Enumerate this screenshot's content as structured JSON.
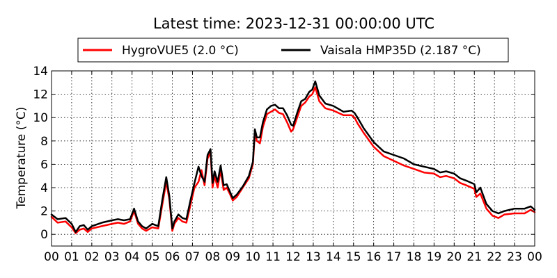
{
  "chart_data": {
    "type": "line",
    "title": "Latest time: 2023-12-31 00:00:00 UTC",
    "xlabel": "",
    "ylabel": "Temperature (°C)",
    "xlim": [
      0,
      24
    ],
    "ylim": [
      -1,
      14
    ],
    "xticks": [
      0,
      1,
      2,
      3,
      4,
      5,
      6,
      7,
      8,
      9,
      10,
      11,
      12,
      13,
      14,
      15,
      16,
      17,
      18,
      19,
      20,
      21,
      22,
      23,
      24
    ],
    "xtick_labels": [
      "00",
      "01",
      "02",
      "03",
      "04",
      "05",
      "06",
      "07",
      "08",
      "09",
      "10",
      "11",
      "12",
      "13",
      "14",
      "15",
      "16",
      "17",
      "18",
      "19",
      "20",
      "21",
      "22",
      "23",
      "00"
    ],
    "yticks": [
      0,
      2,
      4,
      6,
      8,
      10,
      12,
      14
    ],
    "ytick_labels": [
      "0",
      "2",
      "4",
      "6",
      "8",
      "10",
      "12",
      "14"
    ],
    "grid": true,
    "legend_position": "top",
    "series": [
      {
        "name": "HygroVUE5 (2.0 °C)",
        "color": "#ff0000",
        "x": [
          0,
          0.3,
          0.7,
          1.0,
          1.2,
          1.4,
          1.6,
          1.8,
          2.0,
          2.5,
          3.0,
          3.3,
          3.6,
          3.9,
          4.1,
          4.3,
          4.5,
          4.7,
          5.0,
          5.3,
          5.5,
          5.7,
          5.85,
          6.0,
          6.1,
          6.3,
          6.5,
          6.7,
          6.9,
          7.1,
          7.3,
          7.45,
          7.6,
          7.75,
          7.9,
          8.0,
          8.1,
          8.25,
          8.4,
          8.55,
          8.7,
          8.85,
          9.0,
          9.2,
          9.5,
          9.8,
          10.0,
          10.1,
          10.2,
          10.35,
          10.5,
          10.7,
          10.9,
          11.1,
          11.3,
          11.5,
          11.7,
          11.9,
          12.0,
          12.2,
          12.4,
          12.6,
          12.8,
          12.95,
          13.1,
          13.3,
          13.6,
          14.0,
          14.5,
          14.9,
          15.05,
          15.2,
          15.5,
          16.0,
          16.5,
          17.0,
          17.5,
          18.0,
          18.5,
          19.0,
          19.3,
          19.6,
          20.0,
          20.3,
          20.6,
          21.0,
          21.1,
          21.3,
          21.6,
          21.9,
          22.2,
          22.5,
          23.0,
          23.5,
          23.8,
          24.0
        ],
        "y": [
          1.5,
          1.0,
          1.1,
          0.6,
          0.1,
          0.4,
          0.5,
          0.2,
          0.5,
          0.7,
          0.9,
          1.0,
          0.9,
          1.1,
          2.0,
          0.9,
          0.5,
          0.3,
          0.6,
          0.5,
          2.5,
          4.5,
          3.0,
          0.3,
          0.9,
          1.4,
          1.1,
          1.0,
          2.5,
          4.0,
          4.5,
          5.5,
          4.2,
          6.5,
          7.0,
          4.0,
          5.0,
          4.0,
          5.5,
          3.8,
          4.0,
          3.5,
          2.9,
          3.2,
          4.0,
          4.8,
          6.0,
          8.7,
          8.0,
          7.8,
          9.2,
          10.3,
          10.5,
          10.7,
          10.4,
          10.3,
          9.6,
          8.8,
          9.0,
          10.0,
          11.0,
          11.3,
          11.8,
          12.0,
          12.6,
          11.4,
          10.8,
          10.6,
          10.2,
          10.2,
          10.0,
          9.5,
          8.7,
          7.5,
          6.7,
          6.3,
          5.9,
          5.6,
          5.3,
          5.2,
          4.9,
          5.0,
          4.8,
          4.4,
          4.2,
          3.9,
          3.2,
          3.5,
          2.2,
          1.6,
          1.4,
          1.7,
          1.8,
          1.8,
          2.1,
          1.9
        ]
      },
      {
        "name": "Vaisala HMP35D (2.187 °C)",
        "color": "#000000",
        "x": [
          0,
          0.3,
          0.7,
          1.0,
          1.2,
          1.4,
          1.6,
          1.8,
          2.0,
          2.5,
          3.0,
          3.3,
          3.6,
          3.9,
          4.1,
          4.3,
          4.5,
          4.7,
          5.0,
          5.3,
          5.5,
          5.7,
          5.85,
          6.0,
          6.1,
          6.3,
          6.5,
          6.7,
          6.9,
          7.1,
          7.3,
          7.45,
          7.6,
          7.75,
          7.9,
          8.0,
          8.1,
          8.25,
          8.4,
          8.55,
          8.7,
          8.85,
          9.0,
          9.2,
          9.5,
          9.8,
          10.0,
          10.1,
          10.2,
          10.35,
          10.5,
          10.7,
          10.9,
          11.1,
          11.3,
          11.5,
          11.7,
          11.9,
          12.0,
          12.2,
          12.4,
          12.6,
          12.8,
          12.95,
          13.1,
          13.3,
          13.6,
          14.0,
          14.5,
          14.9,
          15.05,
          15.2,
          15.5,
          16.0,
          16.5,
          17.0,
          17.5,
          18.0,
          18.5,
          19.0,
          19.3,
          19.6,
          20.0,
          20.3,
          20.6,
          21.0,
          21.1,
          21.3,
          21.6,
          21.9,
          22.2,
          22.5,
          23.0,
          23.5,
          23.8,
          24.0
        ],
        "y": [
          1.7,
          1.3,
          1.4,
          0.9,
          0.2,
          0.7,
          0.8,
          0.4,
          0.7,
          1.0,
          1.2,
          1.3,
          1.2,
          1.3,
          2.2,
          1.1,
          0.7,
          0.5,
          0.9,
          0.7,
          2.9,
          4.9,
          3.3,
          0.5,
          1.1,
          1.7,
          1.4,
          1.3,
          2.9,
          4.4,
          5.8,
          5.0,
          4.5,
          6.8,
          7.3,
          4.4,
          5.4,
          4.5,
          5.9,
          4.2,
          4.3,
          3.7,
          3.1,
          3.4,
          4.1,
          5.0,
          6.2,
          9.0,
          8.3,
          8.3,
          9.6,
          10.7,
          11.0,
          11.1,
          10.8,
          10.8,
          10.2,
          9.4,
          9.3,
          10.4,
          11.4,
          11.6,
          12.2,
          12.4,
          13.1,
          11.9,
          11.2,
          11.0,
          10.5,
          10.6,
          10.4,
          10.0,
          9.1,
          7.9,
          7.1,
          6.8,
          6.5,
          6.0,
          5.8,
          5.6,
          5.3,
          5.4,
          5.2,
          4.8,
          4.6,
          4.3,
          3.6,
          4.0,
          2.6,
          2.0,
          1.8,
          2.0,
          2.2,
          2.2,
          2.4,
          2.1
        ]
      }
    ]
  }
}
